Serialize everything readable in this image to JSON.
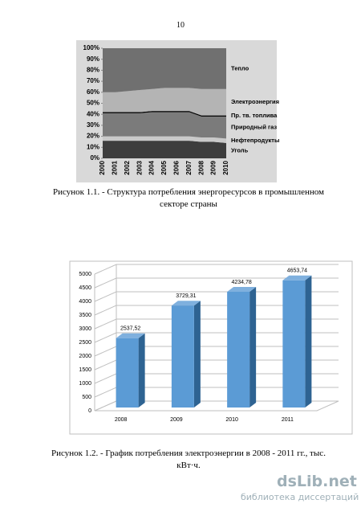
{
  "page_number": "10",
  "chart_data": [
    {
      "type": "area",
      "categories": [
        "2000",
        "2001",
        "2002",
        "2003",
        "2004",
        "2005",
        "2006",
        "2007",
        "2008",
        "2009",
        "2010"
      ],
      "ylim": [
        0,
        100
      ],
      "yticks": [
        {
          "value": 0,
          "label": "0%"
        },
        {
          "value": 10,
          "label": "10%"
        },
        {
          "value": 20,
          "label": "20%"
        },
        {
          "value": 30,
          "label": "30%"
        },
        {
          "value": 40,
          "label": "40%"
        },
        {
          "value": 50,
          "label": "50%"
        },
        {
          "value": 60,
          "label": "60%"
        },
        {
          "value": 70,
          "label": "70%"
        },
        {
          "value": 80,
          "label": "80%"
        },
        {
          "value": 90,
          "label": "90%"
        },
        {
          "value": 100,
          "label": "100%"
        }
      ],
      "series": [
        {
          "name": "Уголь",
          "color": "#3d3d3d",
          "values": [
            16,
            16,
            16,
            16,
            16,
            16,
            16,
            16,
            15,
            15,
            14
          ]
        },
        {
          "name": "Нефтепродукты",
          "color": "#c9c9c9",
          "values": [
            4,
            4,
            4,
            4,
            4,
            4,
            4,
            4,
            4,
            4,
            4
          ]
        },
        {
          "name": "Природный газ",
          "color": "#7b7b7b",
          "values": [
            21,
            21,
            21,
            21,
            22,
            22,
            22,
            22,
            19,
            19,
            20
          ]
        },
        {
          "name": "Пр. тв. топлива",
          "color": "#000000",
          "values": [
            1,
            1,
            1,
            1,
            1,
            1,
            1,
            1,
            1,
            1,
            1
          ]
        },
        {
          "name": "Электроэнергия",
          "color": "#b4b4b4",
          "values": [
            18,
            18,
            19,
            20,
            20,
            21,
            21,
            21,
            24,
            24,
            24
          ]
        },
        {
          "name": "Тепло",
          "color": "#707070",
          "values": [
            40,
            40,
            39,
            38,
            37,
            36,
            36,
            36,
            37,
            37,
            37
          ]
        }
      ]
    },
    {
      "type": "bar3d",
      "categories": [
        "2008",
        "2009",
        "2010",
        "2011"
      ],
      "values": [
        2537.52,
        3729.31,
        4234.78,
        4653.74
      ],
      "value_labels": [
        "2537,52",
        "3729,31",
        "4234,78",
        "4653,74"
      ],
      "color": "#5b9bd5",
      "ylim": [
        0,
        5000
      ],
      "yticks": [
        0,
        500,
        1000,
        1500,
        2000,
        2500,
        3000,
        3500,
        4000,
        4500,
        5000
      ],
      "grid": true
    }
  ],
  "captions": [
    [
      "Рисунок 1.1. - Структура потребления энергоресурсов в промышленном",
      "секторе страны"
    ],
    [
      "Рисунок 1.2. - График потребления электроэнергии в 2008 - 2011 гг., тыс.",
      "кВт·ч."
    ]
  ],
  "watermark": {
    "brand": "dsLib.net",
    "subtitle": "библиотека диссертаций"
  }
}
